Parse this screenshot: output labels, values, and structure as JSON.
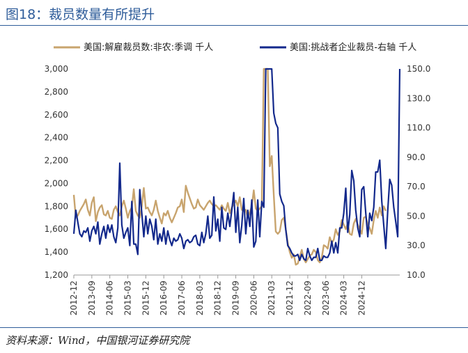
{
  "figure": {
    "title": "图18：裁员数量有所提升",
    "source": "资料来源：Wind，中国银河证券研究院"
  },
  "colors": {
    "title": "#2e5c9a",
    "series_tan": "#c8a46e",
    "series_navy": "#13298c",
    "rule": "#2e5c9a"
  },
  "chart_data": {
    "type": "line",
    "title": "",
    "xlabel": "",
    "ylabel": "",
    "x_tick_labels": [
      "2012-12",
      "2013-09",
      "2014-06",
      "2015-03",
      "2015-12",
      "2016-09",
      "2017-06",
      "2018-03",
      "2018-12",
      "2019-09",
      "2020-06",
      "2021-03",
      "2021-12",
      "2022-09",
      "2023-06",
      "2024-03",
      "2024-12"
    ],
    "y_left": {
      "lim": [
        1200,
        3000
      ],
      "ticks": [
        1200,
        1400,
        1600,
        1800,
        2000,
        2200,
        2400,
        2600,
        2800,
        3000
      ],
      "tick_labels": [
        "1,200",
        "1,400",
        "1,600",
        "1,800",
        "2,000",
        "2,200",
        "2,400",
        "2,600",
        "2,800",
        "3,000"
      ]
    },
    "y_right": {
      "lim": [
        10,
        150
      ],
      "ticks": [
        10,
        30,
        50,
        70,
        90,
        110,
        130,
        150
      ],
      "tick_labels": [
        "10.0",
        "30.0",
        "50.0",
        "70.0",
        "90.0",
        "110.0",
        "130.0",
        "150.0"
      ]
    },
    "grid": false,
    "legend_position": "top",
    "x_start": "2012-12",
    "series": [
      {
        "name": "美国:解雇裁员数:非农:季调 千人",
        "axis": "left",
        "color": "#c8a46e",
        "values": [
          1900,
          1700,
          1720,
          1760,
          1790,
          1820,
          1860,
          1770,
          1720,
          1830,
          1880,
          1670,
          1750,
          1790,
          1810,
          1730,
          1720,
          1760,
          1700,
          1690,
          1770,
          1800,
          1750,
          1720,
          1800,
          1850,
          1780,
          1700,
          1760,
          1790,
          1950,
          1760,
          1720,
          1700,
          1800,
          1960,
          1780,
          1790,
          1750,
          1720,
          1770,
          1850,
          1760,
          1700,
          1650,
          1740,
          1720,
          1760,
          1700,
          1660,
          1700,
          1740,
          1790,
          1800,
          1860,
          1750,
          1980,
          1920,
          1870,
          1820,
          1780,
          1790,
          1860,
          1810,
          1790,
          1770,
          1800,
          1830,
          1850,
          1820,
          1800,
          1810,
          1790,
          1770,
          1810,
          1780,
          1760,
          1830,
          1740,
          1790,
          1820,
          1850,
          1800,
          1880,
          1770,
          1760,
          1770,
          1700,
          1750,
          1800,
          1940,
          1780,
          1760,
          1780,
          1800,
          3000,
          3000,
          3000,
          2150,
          2240,
          1900,
          1580,
          1560,
          1580,
          1680,
          1700,
          1600,
          1480,
          1400,
          1350,
          1380,
          1290,
          1300,
          1360,
          1420,
          1340,
          1310,
          1340,
          1370,
          1380,
          1420,
          1400,
          1330,
          1310,
          1350,
          1460,
          1450,
          1430,
          1530,
          1480,
          1510,
          1600,
          1550,
          1580,
          1680,
          1640,
          1600,
          1650,
          1560,
          1550,
          1650,
          1690,
          1640,
          1600,
          1560,
          1700,
          1710,
          1640,
          1610,
          1560,
          1680,
          1760,
          1700,
          1790,
          1720,
          1800,
          1760
        ]
      },
      {
        "name": "美国:挑战者企业裁员-右轴 千人",
        "axis": "right",
        "color": "#13298c",
        "values": [
          38,
          54,
          46,
          38,
          36,
          40,
          39,
          42,
          33,
          40,
          43,
          38,
          46,
          31,
          38,
          43,
          35,
          44,
          39,
          44,
          36,
          32,
          42,
          86,
          44,
          35,
          39,
          42,
          30,
          60,
          31,
          31,
          24,
          68,
          52,
          36,
          50,
          38,
          48,
          43,
          34,
          48,
          31,
          38,
          33,
          42,
          31,
          40,
          34,
          30,
          35,
          33,
          34,
          38,
          35,
          28,
          33,
          34,
          32,
          33,
          36,
          37,
          31,
          30,
          39,
          32,
          38,
          50,
          35,
          37,
          63,
          40,
          48,
          33,
          56,
          42,
          41,
          52,
          43,
          54,
          66,
          39,
          56,
          32,
          44,
          62,
          38,
          54,
          43,
          61,
          29,
          33,
          61,
          36,
          60,
          56,
          150,
          150,
          152,
          150,
          120,
          113,
          110,
          65,
          60,
          57,
          41,
          30,
          28,
          25,
          23,
          23,
          24,
          20,
          24,
          21,
          20,
          28,
          23,
          20,
          22,
          22,
          28,
          20,
          20,
          23,
          22,
          22,
          25,
          33,
          25,
          32,
          25,
          42,
          42,
          52,
          69,
          39,
          51,
          81,
          74,
          54,
          42,
          36,
          68,
          70,
          52,
          36,
          52,
          47,
          56,
          80,
          80,
          88,
          60,
          44,
          28,
          54,
          75,
          71,
          56,
          46,
          36,
          150
        ]
      }
    ]
  }
}
